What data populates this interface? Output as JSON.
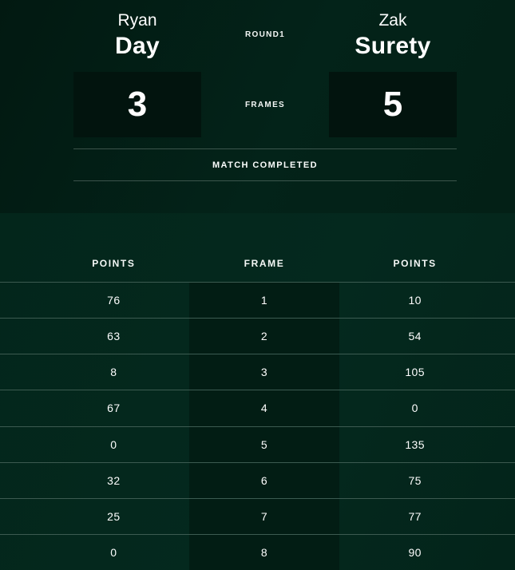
{
  "scoreboard": {
    "round_label": "ROUND1",
    "frames_label": "FRAMES",
    "status_label": "MATCH COMPLETED",
    "home": {
      "first_name": "Ryan",
      "last_name": "Day",
      "frames": "3"
    },
    "away": {
      "first_name": "Zak",
      "last_name": "Surety",
      "frames": "5"
    }
  },
  "frames_table": {
    "headers": [
      "POINTS",
      "FRAME",
      "POINTS"
    ],
    "rows": [
      {
        "home_points": "76",
        "frame": "1",
        "away_points": "10"
      },
      {
        "home_points": "63",
        "frame": "2",
        "away_points": "54"
      },
      {
        "home_points": "8",
        "frame": "3",
        "away_points": "105"
      },
      {
        "home_points": "67",
        "frame": "4",
        "away_points": "0"
      },
      {
        "home_points": "0",
        "frame": "5",
        "away_points": "135"
      },
      {
        "home_points": "32",
        "frame": "6",
        "away_points": "75"
      },
      {
        "home_points": "25",
        "frame": "7",
        "away_points": "77"
      },
      {
        "home_points": "0",
        "frame": "8",
        "away_points": "90"
      }
    ]
  },
  "colors": {
    "top_section_bg": "#032017",
    "bottom_section_bg": "#03271c",
    "score_box_bg": "#02140e",
    "frame_column_bg": "#021d14",
    "divider": "#42524a",
    "text": "#ffffff"
  }
}
